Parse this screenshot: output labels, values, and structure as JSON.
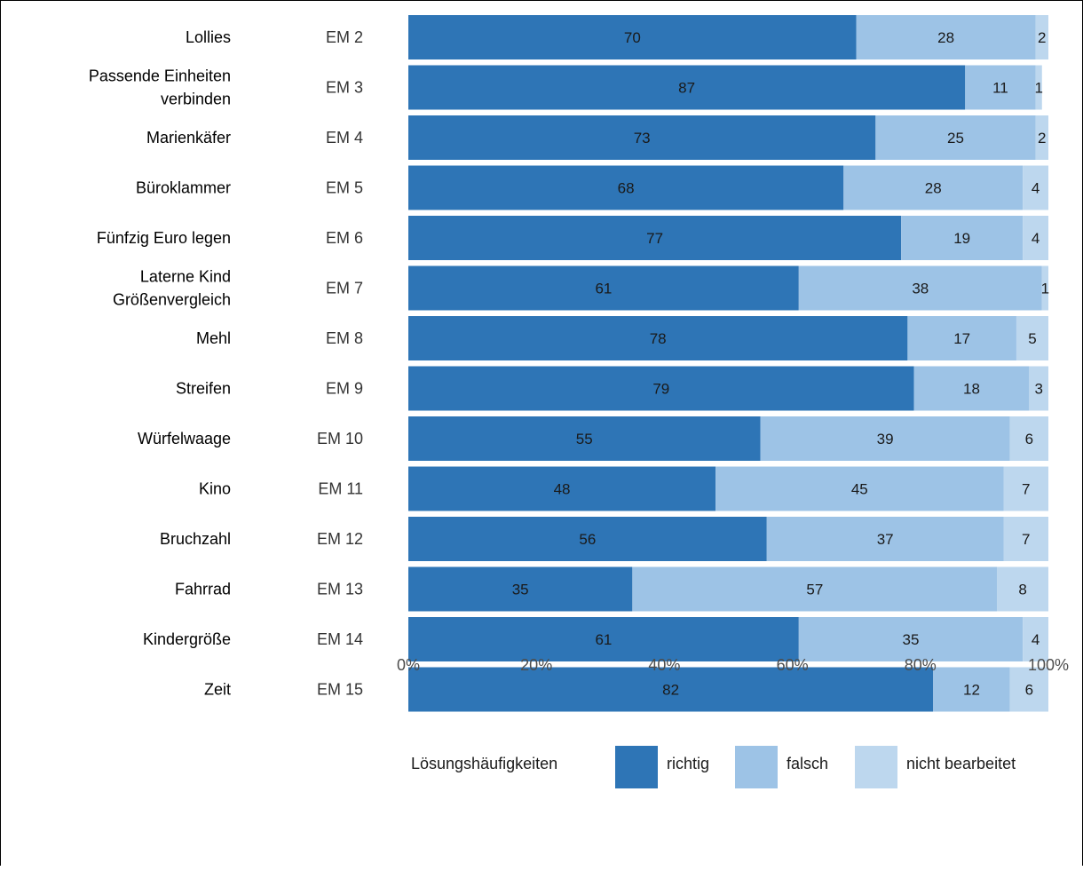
{
  "chart_data": {
    "type": "bar",
    "orientation": "horizontal",
    "stacked": true,
    "percent_stacked": true,
    "categories": [
      "Lollies",
      "Passende Einheiten verbinden",
      "Marienkäfer",
      "Büroklammer",
      "Fünfzig Euro legen",
      "Laterne Kind Größenvergleich",
      "Mehl",
      "Streifen",
      "Würfelwaage",
      "Kino",
      "Bruchzahl",
      "Fahrrad",
      "Kindergröße",
      "Zeit"
    ],
    "category_lines": [
      [
        "Lollies"
      ],
      [
        "Passende Einheiten",
        "verbinden"
      ],
      [
        "Marienkäfer"
      ],
      [
        "Büroklammer"
      ],
      [
        "Fünfzig Euro legen"
      ],
      [
        "Laterne Kind",
        "Größenvergleich"
      ],
      [
        "Mehl"
      ],
      [
        "Streifen"
      ],
      [
        "Würfelwaage"
      ],
      [
        "Kino"
      ],
      [
        "Bruchzahl"
      ],
      [
        "Fahrrad"
      ],
      [
        "Kindergröße"
      ],
      [
        "Zeit"
      ]
    ],
    "codes": [
      "EM 2",
      "EM 3",
      "EM 4",
      "EM 5",
      "EM 6",
      "EM 7",
      "EM 8",
      "EM 9",
      "EM 10",
      "EM 11",
      "EM 12",
      "EM 13",
      "EM 14",
      "EM 15"
    ],
    "series": [
      {
        "name": "richtig",
        "color": "#2e75b6",
        "values": [
          70,
          87,
          73,
          68,
          77,
          61,
          78,
          79,
          55,
          48,
          56,
          35,
          61,
          82
        ]
      },
      {
        "name": "falsch",
        "color": "#9dc3e6",
        "values": [
          28,
          11,
          25,
          28,
          19,
          38,
          17,
          18,
          39,
          45,
          37,
          57,
          35,
          12
        ]
      },
      {
        "name": "nicht bearbeitet",
        "color": "#bdd7ee",
        "values": [
          2,
          1,
          2,
          4,
          4,
          1,
          5,
          3,
          6,
          7,
          7,
          8,
          4,
          6
        ]
      }
    ],
    "x_ticks": [
      "0%",
      "20%",
      "40%",
      "60%",
      "80%",
      "100%"
    ],
    "xlim": [
      0,
      100
    ],
    "legend": {
      "title": "Lösungshäufigkeiten",
      "position": "bottom"
    },
    "grid": false
  }
}
